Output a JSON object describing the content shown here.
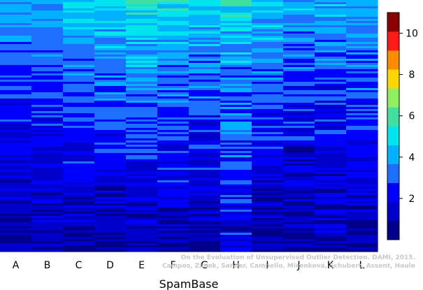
{
  "chart_data": {
    "type": "heatmap",
    "title": "",
    "xlabel": "SpamBase",
    "ylabel": "",
    "categories": [
      "A",
      "B",
      "C",
      "D",
      "E",
      "F",
      "G",
      "H",
      "I",
      "J",
      "K",
      "L"
    ],
    "colorbar": {
      "range": [
        0,
        11
      ],
      "ticks": [
        2,
        4,
        6,
        8,
        10
      ],
      "colors": [
        "#00008B",
        "#0000CD",
        "#0000FF",
        "#1E6FFF",
        "#00B2FF",
        "#00E5EE",
        "#40E0A0",
        "#90EE60",
        "#FFD700",
        "#FF8C00",
        "#FF1A1A",
        "#8B0000"
      ]
    },
    "columns": [
      {
        "name": "A",
        "top": 3.9,
        "bottom": 0.8,
        "noise": 0.8
      },
      {
        "name": "B",
        "top": 4.0,
        "bottom": 0.8,
        "noise": 0.8
      },
      {
        "name": "C",
        "top": 4.8,
        "bottom": 0.7,
        "noise": 0.9
      },
      {
        "name": "D",
        "top": 5.3,
        "bottom": 0.6,
        "noise": 0.9
      },
      {
        "name": "E",
        "top": 5.6,
        "bottom": 0.7,
        "noise": 0.9
      },
      {
        "name": "F",
        "top": 4.9,
        "bottom": 1.0,
        "noise": 1.0
      },
      {
        "name": "G",
        "top": 4.9,
        "bottom": 0.9,
        "noise": 1.0
      },
      {
        "name": "H",
        "top": 5.0,
        "bottom": 1.5,
        "noise": 1.2
      },
      {
        "name": "I",
        "top": 4.6,
        "bottom": 0.8,
        "noise": 1.0
      },
      {
        "name": "J",
        "top": 4.0,
        "bottom": 0.7,
        "noise": 1.1
      },
      {
        "name": "K",
        "top": 4.2,
        "bottom": 0.8,
        "noise": 1.0
      },
      {
        "name": "L",
        "top": 4.3,
        "bottom": 0.8,
        "noise": 1.0
      }
    ]
  },
  "credit": {
    "line1": "On the Evaluation of Unsupervised Outlier Detection. DAMI, 2015.",
    "line2": "Campos, Zimek, Sander, Campello, Micenková, Schubert, Assent, Houle"
  }
}
